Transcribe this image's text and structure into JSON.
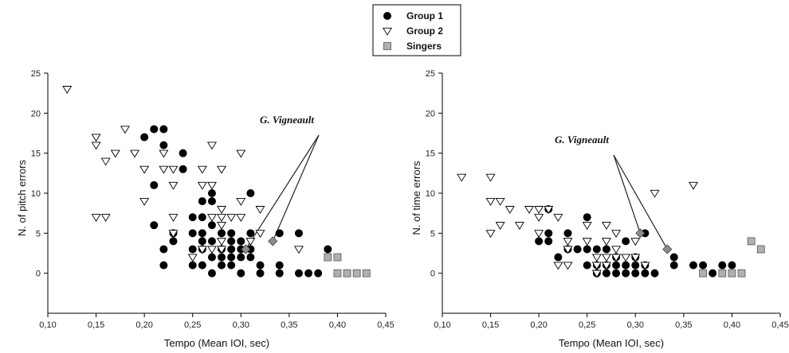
{
  "legend": {
    "entries": [
      {
        "label": "Group 1",
        "marker": "circle",
        "fill": "#000000"
      },
      {
        "label": "Group 2",
        "marker": "triangle-down",
        "fill": "#ffffff"
      },
      {
        "label": "Singers",
        "marker": "square",
        "fill": "#b0b0b0"
      }
    ],
    "placement": "top-center"
  },
  "colors": {
    "singer_fill": "#b0b0b0",
    "vigneault_fill": "#8c8c8c",
    "axis": "#000000"
  },
  "chart_data": [
    {
      "type": "scatter",
      "xlabel": "Tempo (Mean IOI, sec)",
      "ylabel": "N. of pitch errors",
      "xlim": [
        0.1,
        0.45
      ],
      "ylim": [
        -5,
        25
      ],
      "xticks": [
        "0,10",
        "0,15",
        "0,20",
        "0,25",
        "0,30",
        "0,35",
        "0,40",
        "0,45"
      ],
      "yticks": [
        "0",
        "5",
        "10",
        "15",
        "20",
        "25"
      ],
      "grid": false,
      "annotation": {
        "text": "G. Vigneault",
        "target": [
          0.333,
          4
        ]
      },
      "series": [
        {
          "name": "Group 1",
          "marker": "circle",
          "points": [
            [
              0.2,
              17
            ],
            [
              0.21,
              18
            ],
            [
              0.22,
              18
            ],
            [
              0.22,
              16
            ],
            [
              0.24,
              15
            ],
            [
              0.24,
              13
            ],
            [
              0.21,
              11
            ],
            [
              0.21,
              6
            ],
            [
              0.22,
              3
            ],
            [
              0.22,
              1
            ],
            [
              0.23,
              5
            ],
            [
              0.23,
              4
            ],
            [
              0.25,
              7
            ],
            [
              0.25,
              5
            ],
            [
              0.25,
              3
            ],
            [
              0.25,
              1
            ],
            [
              0.26,
              9
            ],
            [
              0.26,
              7
            ],
            [
              0.26,
              5
            ],
            [
              0.26,
              4
            ],
            [
              0.26,
              3
            ],
            [
              0.26,
              1
            ],
            [
              0.27,
              10
            ],
            [
              0.27,
              9
            ],
            [
              0.27,
              6
            ],
            [
              0.27,
              4
            ],
            [
              0.27,
              2
            ],
            [
              0.27,
              0
            ],
            [
              0.28,
              5
            ],
            [
              0.28,
              3
            ],
            [
              0.28,
              2
            ],
            [
              0.28,
              1
            ],
            [
              0.29,
              5
            ],
            [
              0.29,
              4
            ],
            [
              0.29,
              3
            ],
            [
              0.29,
              2
            ],
            [
              0.29,
              1
            ],
            [
              0.3,
              4
            ],
            [
              0.3,
              3
            ],
            [
              0.3,
              2
            ],
            [
              0.3,
              0
            ],
            [
              0.31,
              10
            ],
            [
              0.31,
              5
            ],
            [
              0.31,
              3
            ],
            [
              0.31,
              2
            ],
            [
              0.32,
              1
            ],
            [
              0.32,
              0
            ],
            [
              0.34,
              5
            ],
            [
              0.34,
              1
            ],
            [
              0.34,
              0
            ],
            [
              0.36,
              5
            ],
            [
              0.36,
              0
            ],
            [
              0.37,
              0
            ],
            [
              0.38,
              0
            ],
            [
              0.39,
              3
            ]
          ]
        },
        {
          "name": "Group 2",
          "marker": "triangle-down",
          "points": [
            [
              0.12,
              23
            ],
            [
              0.15,
              17
            ],
            [
              0.15,
              16
            ],
            [
              0.15,
              7
            ],
            [
              0.16,
              14
            ],
            [
              0.16,
              7
            ],
            [
              0.17,
              15
            ],
            [
              0.18,
              18
            ],
            [
              0.19,
              15
            ],
            [
              0.2,
              13
            ],
            [
              0.2,
              9
            ],
            [
              0.22,
              15
            ],
            [
              0.22,
              13
            ],
            [
              0.23,
              13
            ],
            [
              0.23,
              11
            ],
            [
              0.23,
              7
            ],
            [
              0.23,
              5
            ],
            [
              0.25,
              2
            ],
            [
              0.26,
              13
            ],
            [
              0.26,
              11
            ],
            [
              0.26,
              3
            ],
            [
              0.27,
              16
            ],
            [
              0.27,
              11
            ],
            [
              0.27,
              7
            ],
            [
              0.27,
              3
            ],
            [
              0.28,
              13
            ],
            [
              0.28,
              8
            ],
            [
              0.28,
              7
            ],
            [
              0.28,
              6
            ],
            [
              0.28,
              4
            ],
            [
              0.28,
              3
            ],
            [
              0.29,
              7
            ],
            [
              0.3,
              15
            ],
            [
              0.3,
              9
            ],
            [
              0.3,
              7
            ],
            [
              0.31,
              4
            ],
            [
              0.32,
              8
            ],
            [
              0.32,
              5
            ],
            [
              0.36,
              3
            ]
          ]
        },
        {
          "name": "Singers",
          "marker": "square",
          "points": [
            [
              0.39,
              2
            ],
            [
              0.4,
              2
            ],
            [
              0.4,
              0
            ],
            [
              0.41,
              0
            ],
            [
              0.42,
              0
            ],
            [
              0.43,
              0
            ]
          ]
        },
        {
          "name": "G. Vigneault",
          "marker": "diamond",
          "points": [
            [
              0.305,
              3
            ],
            [
              0.333,
              4
            ]
          ]
        }
      ]
    },
    {
      "type": "scatter",
      "xlabel": "Tempo (Mean IOI, sec)",
      "ylabel": "N. of time errors",
      "xlim": [
        0.1,
        0.45
      ],
      "ylim": [
        -5,
        25
      ],
      "xticks": [
        "0,10",
        "0,15",
        "0,20",
        "0,25",
        "0,30",
        "0,35",
        "0,40",
        "0,45"
      ],
      "yticks": [
        "0",
        "5",
        "10",
        "15",
        "20",
        "25"
      ],
      "grid": false,
      "annotation": {
        "text": "G. Vigneault",
        "target": [
          0.333,
          3
        ]
      },
      "series": [
        {
          "name": "Group 1",
          "marker": "circle",
          "points": [
            [
              0.2,
              4
            ],
            [
              0.21,
              8
            ],
            [
              0.21,
              5
            ],
            [
              0.21,
              4
            ],
            [
              0.22,
              2
            ],
            [
              0.23,
              5
            ],
            [
              0.23,
              3
            ],
            [
              0.24,
              3
            ],
            [
              0.25,
              7
            ],
            [
              0.25,
              3
            ],
            [
              0.25,
              1
            ],
            [
              0.26,
              3
            ],
            [
              0.26,
              1
            ],
            [
              0.26,
              0
            ],
            [
              0.27,
              3
            ],
            [
              0.27,
              1
            ],
            [
              0.27,
              0
            ],
            [
              0.28,
              2
            ],
            [
              0.28,
              1
            ],
            [
              0.28,
              0
            ],
            [
              0.29,
              4
            ],
            [
              0.29,
              1
            ],
            [
              0.29,
              0
            ],
            [
              0.3,
              2
            ],
            [
              0.3,
              1
            ],
            [
              0.3,
              0
            ],
            [
              0.31,
              5
            ],
            [
              0.31,
              1
            ],
            [
              0.31,
              0
            ],
            [
              0.32,
              0
            ],
            [
              0.34,
              2
            ],
            [
              0.34,
              1
            ],
            [
              0.36,
              1
            ],
            [
              0.37,
              1
            ],
            [
              0.38,
              0
            ],
            [
              0.39,
              1
            ],
            [
              0.4,
              1
            ]
          ]
        },
        {
          "name": "Group 2",
          "marker": "triangle-down",
          "points": [
            [
              0.12,
              12
            ],
            [
              0.15,
              12
            ],
            [
              0.15,
              9
            ],
            [
              0.15,
              5
            ],
            [
              0.16,
              9
            ],
            [
              0.16,
              6
            ],
            [
              0.17,
              8
            ],
            [
              0.18,
              6
            ],
            [
              0.19,
              8
            ],
            [
              0.2,
              8
            ],
            [
              0.2,
              7
            ],
            [
              0.2,
              5
            ],
            [
              0.21,
              8
            ],
            [
              0.22,
              7
            ],
            [
              0.22,
              1
            ],
            [
              0.23,
              4
            ],
            [
              0.23,
              3
            ],
            [
              0.23,
              1
            ],
            [
              0.25,
              6
            ],
            [
              0.25,
              4
            ],
            [
              0.26,
              2
            ],
            [
              0.26,
              1
            ],
            [
              0.26,
              0
            ],
            [
              0.27,
              6
            ],
            [
              0.27,
              4
            ],
            [
              0.27,
              2
            ],
            [
              0.27,
              1
            ],
            [
              0.28,
              5
            ],
            [
              0.28,
              3
            ],
            [
              0.28,
              2
            ],
            [
              0.29,
              2
            ],
            [
              0.3,
              4
            ],
            [
              0.3,
              2
            ],
            [
              0.31,
              1
            ],
            [
              0.32,
              10
            ],
            [
              0.36,
              11
            ]
          ]
        },
        {
          "name": "Singers",
          "marker": "square",
          "points": [
            [
              0.37,
              0
            ],
            [
              0.39,
              0
            ],
            [
              0.4,
              0
            ],
            [
              0.41,
              0
            ],
            [
              0.42,
              4
            ],
            [
              0.43,
              3
            ]
          ]
        },
        {
          "name": "G. Vigneault",
          "marker": "diamond",
          "points": [
            [
              0.305,
              5
            ],
            [
              0.333,
              3
            ]
          ]
        }
      ]
    }
  ]
}
